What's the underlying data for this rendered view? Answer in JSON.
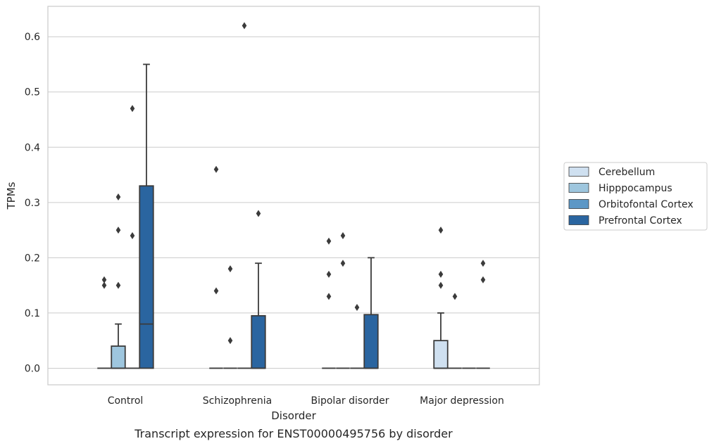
{
  "chart_data": {
    "type": "box",
    "caption": "Transcript expression for ENST00000495756 by disorder",
    "xlabel": "Disorder",
    "ylabel": "TPMs",
    "ylim": [
      -0.03,
      0.655
    ],
    "yticks": [
      0.0,
      0.1,
      0.2,
      0.3,
      0.4,
      0.5,
      0.6
    ],
    "ytick_labels": [
      "0.0",
      "0.1",
      "0.2",
      "0.3",
      "0.4",
      "0.5",
      "0.6"
    ],
    "grid": "horizontal",
    "legend_position": "right",
    "categories": [
      "Control",
      "Schizophrenia",
      "Bipolar disorder",
      "Major depression"
    ],
    "series": [
      {
        "name": "Cerebellum",
        "color": "#cfe0f0",
        "boxes": [
          {
            "q1": 0,
            "median": 0,
            "q3": 0,
            "whisker_low": 0,
            "whisker_high": 0,
            "outliers": [
              0.16,
              0.15
            ]
          },
          {
            "q1": 0,
            "median": 0,
            "q3": 0,
            "whisker_low": 0,
            "whisker_high": 0,
            "outliers": [
              0.36,
              0.14
            ]
          },
          {
            "q1": 0,
            "median": 0,
            "q3": 0,
            "whisker_low": 0,
            "whisker_high": 0,
            "outliers": [
              0.23,
              0.17,
              0.13
            ]
          },
          {
            "q1": 0,
            "median": 0,
            "q3": 0.05,
            "whisker_low": 0,
            "whisker_high": 0.1,
            "outliers": [
              0.25,
              0.17,
              0.15
            ]
          }
        ]
      },
      {
        "name": "Hipppocampus",
        "color": "#9ec6de",
        "boxes": [
          {
            "q1": 0,
            "median": 0,
            "q3": 0.04,
            "whisker_low": 0,
            "whisker_high": 0.08,
            "outliers": [
              0.31,
              0.25,
              0.15
            ]
          },
          {
            "q1": 0,
            "median": 0,
            "q3": 0,
            "whisker_low": 0,
            "whisker_high": 0,
            "outliers": [
              0.18,
              0.05
            ]
          },
          {
            "q1": 0,
            "median": 0,
            "q3": 0,
            "whisker_low": 0,
            "whisker_high": 0,
            "outliers": [
              0.24,
              0.19
            ]
          },
          {
            "q1": 0,
            "median": 0,
            "q3": 0,
            "whisker_low": 0,
            "whisker_high": 0,
            "outliers": [
              0.13
            ]
          }
        ]
      },
      {
        "name": "Orbitofontal Cortex",
        "color": "#5c97c6",
        "boxes": [
          {
            "q1": 0,
            "median": 0,
            "q3": 0,
            "whisker_low": 0,
            "whisker_high": 0,
            "outliers": [
              0.47,
              0.24
            ]
          },
          {
            "q1": 0,
            "median": 0,
            "q3": 0,
            "whisker_low": 0,
            "whisker_high": 0,
            "outliers": [
              0.62
            ]
          },
          {
            "q1": 0,
            "median": 0,
            "q3": 0,
            "whisker_low": 0,
            "whisker_high": 0,
            "outliers": [
              0.11
            ]
          },
          {
            "q1": 0,
            "median": 0,
            "q3": 0,
            "whisker_low": 0,
            "whisker_high": 0,
            "outliers": []
          }
        ]
      },
      {
        "name": "Prefrontal Cortex",
        "color": "#2a65a0",
        "boxes": [
          {
            "q1": 0,
            "median": 0.08,
            "q3": 0.33,
            "whisker_low": 0,
            "whisker_high": 0.55,
            "outliers": []
          },
          {
            "q1": 0,
            "median": 0,
            "q3": 0.095,
            "whisker_low": 0,
            "whisker_high": 0.19,
            "outliers": [
              0.28
            ]
          },
          {
            "q1": 0,
            "median": 0,
            "q3": 0.097,
            "whisker_low": 0,
            "whisker_high": 0.2,
            "outliers": []
          },
          {
            "q1": 0,
            "median": 0,
            "q3": 0,
            "whisker_low": 0,
            "whisker_high": 0,
            "outliers": [
              0.19,
              0.16
            ]
          }
        ]
      }
    ]
  }
}
